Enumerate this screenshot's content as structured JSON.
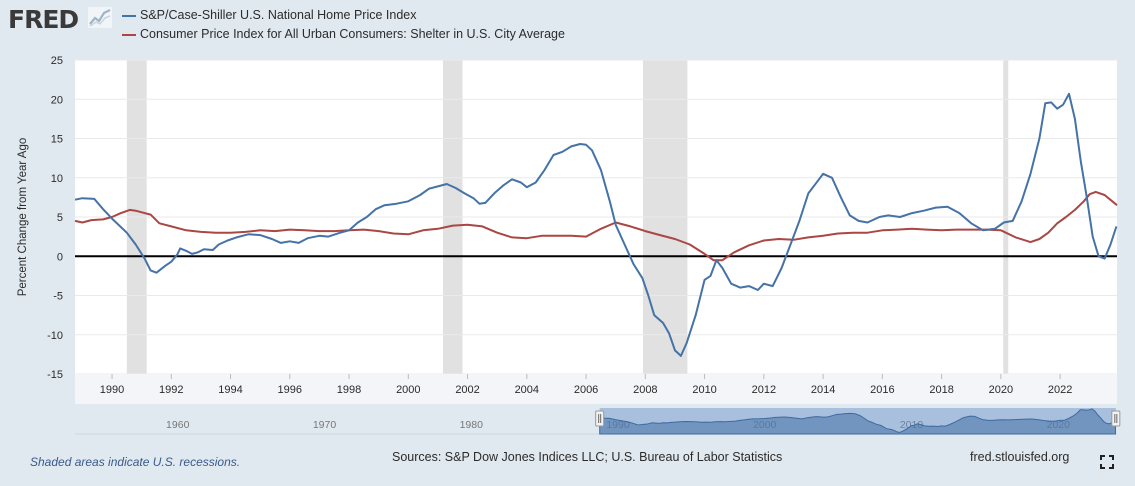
{
  "header": {
    "logo_text": "FRED",
    "logo_icon": "chart-line-icon"
  },
  "chart_data": {
    "type": "line",
    "ylabel": "Percent Change from Year Ago",
    "xlim": [
      1988.75,
      2023.92
    ],
    "ylim": [
      -15,
      25
    ],
    "yticks": [
      25,
      20,
      15,
      10,
      5,
      0,
      -5,
      -10,
      -15
    ],
    "xticks": [
      1990,
      1992,
      1994,
      1996,
      1998,
      2000,
      2002,
      2004,
      2006,
      2008,
      2010,
      2012,
      2014,
      2016,
      2018,
      2020,
      2022
    ],
    "zero_line": true,
    "recessions": [
      [
        1990.5,
        1991.17
      ],
      [
        2001.17,
        2001.83
      ],
      [
        2007.92,
        2009.42
      ],
      [
        2020.08,
        2020.25
      ]
    ],
    "series": [
      {
        "name": "S&P/Case-Shiller U.S. National Home Price Index",
        "color": "#4572a7",
        "points": [
          [
            1988.75,
            7.2
          ],
          [
            1989.0,
            7.4
          ],
          [
            1989.4,
            7.3
          ],
          [
            1989.7,
            6.0
          ],
          [
            1990.0,
            4.8
          ],
          [
            1990.5,
            3.0
          ],
          [
            1990.8,
            1.5
          ],
          [
            1991.1,
            -0.3
          ],
          [
            1991.3,
            -1.8
          ],
          [
            1991.5,
            -2.1
          ],
          [
            1991.8,
            -1.2
          ],
          [
            1992.0,
            -0.7
          ],
          [
            1992.2,
            0.2
          ],
          [
            1992.3,
            1.0
          ],
          [
            1992.5,
            0.7
          ],
          [
            1992.7,
            0.3
          ],
          [
            1992.9,
            0.5
          ],
          [
            1993.1,
            0.9
          ],
          [
            1993.4,
            0.8
          ],
          [
            1993.6,
            1.5
          ],
          [
            1993.9,
            2.0
          ],
          [
            1994.2,
            2.4
          ],
          [
            1994.6,
            2.8
          ],
          [
            1995.0,
            2.7
          ],
          [
            1995.4,
            2.2
          ],
          [
            1995.7,
            1.7
          ],
          [
            1996.0,
            1.9
          ],
          [
            1996.3,
            1.7
          ],
          [
            1996.6,
            2.3
          ],
          [
            1997.0,
            2.6
          ],
          [
            1997.3,
            2.5
          ],
          [
            1997.7,
            3.0
          ],
          [
            1998.0,
            3.3
          ],
          [
            1998.3,
            4.3
          ],
          [
            1998.6,
            5.0
          ],
          [
            1998.9,
            6.0
          ],
          [
            1999.2,
            6.5
          ],
          [
            1999.6,
            6.7
          ],
          [
            2000.0,
            7.0
          ],
          [
            2000.4,
            7.8
          ],
          [
            2000.7,
            8.6
          ],
          [
            2001.0,
            8.9
          ],
          [
            2001.3,
            9.2
          ],
          [
            2001.6,
            8.7
          ],
          [
            2001.9,
            8.0
          ],
          [
            2002.2,
            7.4
          ],
          [
            2002.4,
            6.7
          ],
          [
            2002.6,
            6.8
          ],
          [
            2002.9,
            8.0
          ],
          [
            2003.2,
            9.0
          ],
          [
            2003.5,
            9.8
          ],
          [
            2003.8,
            9.4
          ],
          [
            2004.0,
            8.8
          ],
          [
            2004.3,
            9.4
          ],
          [
            2004.6,
            11.0
          ],
          [
            2004.9,
            12.9
          ],
          [
            2005.2,
            13.3
          ],
          [
            2005.5,
            14.0
          ],
          [
            2005.8,
            14.3
          ],
          [
            2006.0,
            14.2
          ],
          [
            2006.2,
            13.5
          ],
          [
            2006.5,
            11.0
          ],
          [
            2006.8,
            7.0
          ],
          [
            2007.0,
            4.0
          ],
          [
            2007.3,
            1.5
          ],
          [
            2007.6,
            -1.0
          ],
          [
            2007.9,
            -2.8
          ],
          [
            2008.1,
            -5.0
          ],
          [
            2008.3,
            -7.5
          ],
          [
            2008.6,
            -8.5
          ],
          [
            2008.8,
            -9.8
          ],
          [
            2009.0,
            -12.0
          ],
          [
            2009.2,
            -12.7
          ],
          [
            2009.4,
            -11.0
          ],
          [
            2009.7,
            -7.5
          ],
          [
            2010.0,
            -3.0
          ],
          [
            2010.2,
            -2.5
          ],
          [
            2010.4,
            -0.5
          ],
          [
            2010.6,
            -1.5
          ],
          [
            2010.9,
            -3.5
          ],
          [
            2011.2,
            -4.0
          ],
          [
            2011.5,
            -3.8
          ],
          [
            2011.8,
            -4.3
          ],
          [
            2012.0,
            -3.5
          ],
          [
            2012.3,
            -3.8
          ],
          [
            2012.6,
            -1.5
          ],
          [
            2012.9,
            1.5
          ],
          [
            2013.2,
            4.5
          ],
          [
            2013.5,
            8.0
          ],
          [
            2013.8,
            9.5
          ],
          [
            2014.0,
            10.5
          ],
          [
            2014.3,
            10.0
          ],
          [
            2014.6,
            7.5
          ],
          [
            2014.9,
            5.2
          ],
          [
            2015.2,
            4.5
          ],
          [
            2015.5,
            4.3
          ],
          [
            2015.9,
            5.0
          ],
          [
            2016.2,
            5.2
          ],
          [
            2016.6,
            5.0
          ],
          [
            2017.0,
            5.5
          ],
          [
            2017.4,
            5.8
          ],
          [
            2017.8,
            6.2
          ],
          [
            2018.2,
            6.3
          ],
          [
            2018.6,
            5.5
          ],
          [
            2019.0,
            4.2
          ],
          [
            2019.4,
            3.3
          ],
          [
            2019.8,
            3.5
          ],
          [
            2020.1,
            4.3
          ],
          [
            2020.4,
            4.5
          ],
          [
            2020.7,
            7.0
          ],
          [
            2021.0,
            10.5
          ],
          [
            2021.3,
            15.0
          ],
          [
            2021.5,
            19.5
          ],
          [
            2021.7,
            19.6
          ],
          [
            2021.9,
            18.8
          ],
          [
            2022.1,
            19.3
          ],
          [
            2022.3,
            20.7
          ],
          [
            2022.5,
            17.5
          ],
          [
            2022.7,
            12.0
          ],
          [
            2022.9,
            7.5
          ],
          [
            2023.1,
            2.5
          ],
          [
            2023.3,
            0.0
          ],
          [
            2023.5,
            -0.3
          ],
          [
            2023.7,
            1.5
          ],
          [
            2023.9,
            3.8
          ]
        ]
      },
      {
        "name": "Consumer Price Index for All Urban Consumers: Shelter in U.S. City Average",
        "color": "#aa4643",
        "points": [
          [
            1988.75,
            4.5
          ],
          [
            1989.0,
            4.3
          ],
          [
            1989.3,
            4.6
          ],
          [
            1989.7,
            4.7
          ],
          [
            1990.0,
            5.0
          ],
          [
            1990.3,
            5.5
          ],
          [
            1990.6,
            5.9
          ],
          [
            1990.8,
            5.8
          ],
          [
            1991.0,
            5.6
          ],
          [
            1991.3,
            5.3
          ],
          [
            1991.6,
            4.2
          ],
          [
            1992.0,
            3.8
          ],
          [
            1992.5,
            3.3
          ],
          [
            1993.0,
            3.1
          ],
          [
            1993.5,
            3.0
          ],
          [
            1994.0,
            3.0
          ],
          [
            1994.5,
            3.1
          ],
          [
            1995.0,
            3.3
          ],
          [
            1995.5,
            3.2
          ],
          [
            1996.0,
            3.4
          ],
          [
            1996.5,
            3.3
          ],
          [
            1997.0,
            3.2
          ],
          [
            1997.5,
            3.2
          ],
          [
            1998.0,
            3.3
          ],
          [
            1998.5,
            3.4
          ],
          [
            1999.0,
            3.2
          ],
          [
            1999.5,
            2.9
          ],
          [
            2000.0,
            2.8
          ],
          [
            2000.5,
            3.3
          ],
          [
            2001.0,
            3.5
          ],
          [
            2001.5,
            3.9
          ],
          [
            2002.0,
            4.0
          ],
          [
            2002.5,
            3.8
          ],
          [
            2003.0,
            3.0
          ],
          [
            2003.5,
            2.4
          ],
          [
            2004.0,
            2.3
          ],
          [
            2004.5,
            2.6
          ],
          [
            2005.0,
            2.6
          ],
          [
            2005.5,
            2.6
          ],
          [
            2006.0,
            2.5
          ],
          [
            2006.5,
            3.5
          ],
          [
            2007.0,
            4.3
          ],
          [
            2007.5,
            3.8
          ],
          [
            2008.0,
            3.2
          ],
          [
            2008.5,
            2.7
          ],
          [
            2009.0,
            2.2
          ],
          [
            2009.5,
            1.5
          ],
          [
            2010.0,
            0.3
          ],
          [
            2010.3,
            -0.5
          ],
          [
            2010.6,
            -0.5
          ],
          [
            2011.0,
            0.5
          ],
          [
            2011.5,
            1.4
          ],
          [
            2012.0,
            2.0
          ],
          [
            2012.5,
            2.2
          ],
          [
            2013.0,
            2.1
          ],
          [
            2013.5,
            2.4
          ],
          [
            2014.0,
            2.6
          ],
          [
            2014.5,
            2.9
          ],
          [
            2015.0,
            3.0
          ],
          [
            2015.5,
            3.0
          ],
          [
            2016.0,
            3.3
          ],
          [
            2016.5,
            3.4
          ],
          [
            2017.0,
            3.5
          ],
          [
            2017.5,
            3.4
          ],
          [
            2018.0,
            3.3
          ],
          [
            2018.5,
            3.4
          ],
          [
            2019.0,
            3.4
          ],
          [
            2019.5,
            3.4
          ],
          [
            2020.0,
            3.3
          ],
          [
            2020.5,
            2.4
          ],
          [
            2021.0,
            1.8
          ],
          [
            2021.3,
            2.2
          ],
          [
            2021.6,
            3.0
          ],
          [
            2021.9,
            4.2
          ],
          [
            2022.2,
            5.0
          ],
          [
            2022.5,
            5.9
          ],
          [
            2022.8,
            7.0
          ],
          [
            2023.0,
            7.9
          ],
          [
            2023.2,
            8.2
          ],
          [
            2023.5,
            7.8
          ],
          [
            2023.92,
            6.5
          ]
        ]
      }
    ],
    "navigator": {
      "labels": [
        {
          "year": 1960,
          "label": "1960"
        },
        {
          "year": 1970,
          "label": "1970"
        },
        {
          "year": 1980,
          "label": "1980"
        },
        {
          "year": 1990,
          "label": "1990"
        },
        {
          "year": 2000,
          "label": "2000"
        },
        {
          "year": 2010,
          "label": "2010"
        },
        {
          "year": 2020,
          "label": "2020"
        }
      ]
    }
  },
  "footer": {
    "note": "Shaded areas indicate U.S. recessions.",
    "sources": "Sources: S&P Dow Jones Indices LLC; U.S. Bureau of Labor Statistics",
    "url": "fred.stlouisfed.org",
    "fullscreen_icon": "fullscreen-icon"
  }
}
